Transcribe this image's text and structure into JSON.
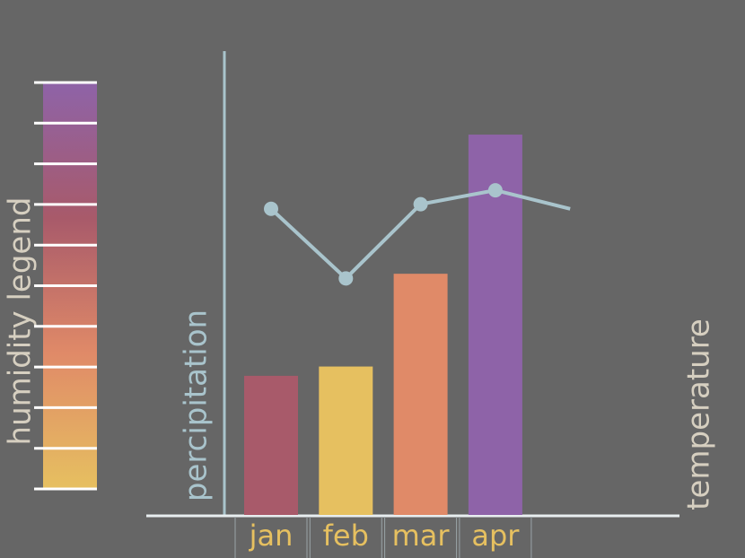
{
  "chart_data": {
    "type": "bar",
    "categories": [
      "jan",
      "feb",
      "mar",
      "apr",
      null
    ],
    "values": [
      30,
      32,
      52,
      82,
      null
    ],
    "colors": [
      "#a85a6a",
      "#e6c060",
      "#e08a68",
      "#8e63a8"
    ],
    "ylabel": "percipitation",
    "ylim": [
      0,
      100
    ],
    "line": {
      "name": "temperature",
      "color": "#a9c4cc",
      "values": [
        66,
        51,
        67,
        70,
        66
      ],
      "axis": "y2"
    },
    "y2lim": [
      0,
      100
    ],
    "legend_label": "humidity legend",
    "legend_colors": [
      "#8e63a8",
      "#a85a6a",
      "#e08a68",
      "#e6c060"
    ]
  }
}
